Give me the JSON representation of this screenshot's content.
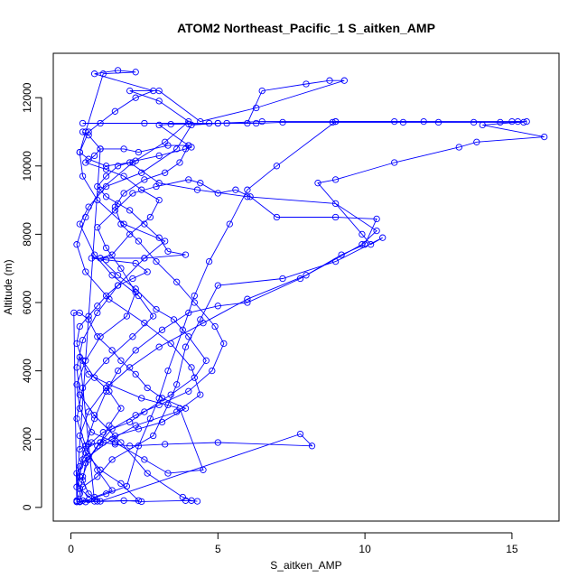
{
  "chart_data": {
    "type": "line",
    "title": "ATOM2 Northeast_Pacific_1 S_aitken_AMP",
    "xlabel": "S_aitken_AMP",
    "ylabel": "Altitude (m)",
    "xlim": [
      -0.6,
      16.6
    ],
    "ylim": [
      -400,
      13300
    ],
    "xticks": [
      0,
      5,
      10,
      15
    ],
    "yticks": [
      0,
      2000,
      4000,
      6000,
      8000,
      10000,
      12000
    ],
    "marker": "open-circle",
    "series_color": "#0000ff",
    "series": [
      {
        "points": [
          [
            0.2,
            160
          ],
          [
            0.4,
            200
          ],
          [
            0.9,
            180
          ],
          [
            1.8,
            200
          ],
          [
            2.4,
            170
          ],
          [
            3.9,
            200
          ],
          [
            4.3,
            180
          ],
          [
            4.1,
            200
          ],
          [
            3.8,
            300
          ],
          [
            2.6,
            1000
          ],
          [
            1.7,
            1900
          ],
          [
            0.8,
            2700
          ],
          [
            0.3,
            3300
          ],
          [
            0.2,
            4100
          ],
          [
            0.4,
            4900
          ],
          [
            0.9,
            5700
          ],
          [
            1.6,
            6500
          ],
          [
            2.5,
            7300
          ],
          [
            3.2,
            7800
          ],
          [
            1.8,
            8300
          ],
          [
            0.9,
            9000
          ],
          [
            0.4,
            9700
          ],
          [
            0.3,
            10400
          ],
          [
            0.6,
            11000
          ],
          [
            1.5,
            11600
          ],
          [
            2.2,
            12000
          ],
          [
            2.8,
            12200
          ],
          [
            0.8,
            12700
          ],
          [
            1.6,
            12800
          ],
          [
            2.2,
            12750
          ],
          [
            1.1,
            12700
          ],
          [
            0.5,
            11000
          ],
          [
            0.3,
            10400
          ],
          [
            0.6,
            10200
          ],
          [
            1.2,
            10000
          ],
          [
            2.0,
            10100
          ],
          [
            3.0,
            9500
          ],
          [
            4.3,
            9300
          ],
          [
            6.0,
            9100
          ],
          [
            9.0,
            8900
          ],
          [
            10.4,
            8100
          ],
          [
            9.9,
            7700
          ],
          [
            8.0,
            6800
          ],
          [
            6.0,
            6100
          ],
          [
            4.5,
            5400
          ],
          [
            3.0,
            4700
          ],
          [
            2.0,
            4100
          ],
          [
            1.2,
            3500
          ],
          [
            0.6,
            2800
          ],
          [
            0.3,
            2100
          ],
          [
            0.5,
            1600
          ],
          [
            1.0,
            1100
          ],
          [
            1.7,
            700
          ],
          [
            2.3,
            200
          ],
          [
            0.3,
            160
          ],
          [
            0.6,
            220
          ],
          [
            1.2,
            400
          ],
          [
            1.9,
            620
          ],
          [
            2.3,
            1800
          ],
          [
            2.7,
            2600
          ],
          [
            3.0,
            3200
          ],
          [
            3.3,
            4000
          ],
          [
            3.8,
            5200
          ],
          [
            4.2,
            6200
          ],
          [
            4.7,
            7200
          ],
          [
            5.4,
            8300
          ],
          [
            6.0,
            9300
          ],
          [
            7.0,
            10000
          ],
          [
            9.0,
            11300
          ],
          [
            12.0,
            11300
          ],
          [
            15.0,
            11300
          ],
          [
            15.5,
            11300
          ],
          [
            14.0,
            11200
          ],
          [
            16.1,
            10850
          ],
          [
            13.8,
            10700
          ],
          [
            13.2,
            10550
          ],
          [
            11.0,
            10100
          ],
          [
            9.0,
            9600
          ],
          [
            8.4,
            9500
          ],
          [
            9.9,
            8000
          ],
          [
            10.2,
            7700
          ],
          [
            10.6,
            7900
          ],
          [
            9.0,
            7200
          ],
          [
            7.2,
            6700
          ],
          [
            5.0,
            6500
          ],
          [
            4.4,
            5500
          ],
          [
            3.9,
            4700
          ],
          [
            3.6,
            3600
          ],
          [
            3.3,
            3000
          ],
          [
            2.8,
            2100
          ],
          [
            1.4,
            1400
          ],
          [
            0.9,
            900
          ],
          [
            0.4,
            600
          ],
          [
            0.3,
            180
          ]
        ]
      },
      {
        "points": [
          [
            0.5,
            160
          ],
          [
            0.8,
            300
          ],
          [
            1.4,
            500
          ],
          [
            0.9,
            1100
          ],
          [
            0.5,
            1800
          ],
          [
            0.2,
            2600
          ],
          [
            0.4,
            3500
          ],
          [
            1.2,
            4300
          ],
          [
            2.1,
            5000
          ],
          [
            2.8,
            5600
          ],
          [
            2.3,
            6200
          ],
          [
            1.4,
            6800
          ],
          [
            0.8,
            7400
          ],
          [
            0.3,
            8300
          ],
          [
            0.6,
            8800
          ],
          [
            1.2,
            9400
          ],
          [
            2.4,
            9800
          ],
          [
            3.6,
            10500
          ],
          [
            4.1,
            11200
          ],
          [
            5.0,
            11250
          ],
          [
            6.0,
            11250
          ],
          [
            6.5,
            12200
          ],
          [
            8.0,
            12400
          ],
          [
            8.8,
            12500
          ],
          [
            9.3,
            12500
          ],
          [
            6.3,
            11700
          ],
          [
            4.4,
            11300
          ],
          [
            3.0,
            12200
          ],
          [
            2.0,
            12200
          ],
          [
            3.0,
            11900
          ],
          [
            4.0,
            11300
          ],
          [
            3.2,
            10700
          ],
          [
            2.1,
            10100
          ],
          [
            1.0,
            9300
          ],
          [
            0.5,
            8500
          ],
          [
            0.2,
            7700
          ],
          [
            0.5,
            6900
          ],
          [
            1.3,
            6100
          ],
          [
            2.5,
            5400
          ],
          [
            3.4,
            4800
          ],
          [
            4.1,
            4100
          ],
          [
            4.4,
            3300
          ],
          [
            3.6,
            2800
          ],
          [
            2.2,
            2400
          ],
          [
            1.4,
            2000
          ],
          [
            0.6,
            1500
          ],
          [
            0.2,
            1000
          ],
          [
            0.3,
            550
          ],
          [
            0.8,
            180
          ],
          [
            0.3,
            4400
          ],
          [
            0.6,
            3900
          ],
          [
            1.3,
            3600
          ],
          [
            2.4,
            3200
          ],
          [
            3.7,
            2900
          ],
          [
            4.5,
            1100
          ],
          [
            3.3,
            1000
          ],
          [
            2.5,
            1400
          ],
          [
            1.5,
            1900
          ],
          [
            0.7,
            2200
          ],
          [
            0.3,
            2900
          ],
          [
            0.2,
            3600
          ],
          [
            0.5,
            4300
          ],
          [
            1.0,
            5000
          ],
          [
            1.9,
            5600
          ],
          [
            2.2,
            6300
          ],
          [
            1.7,
            7000
          ],
          [
            1.2,
            7600
          ],
          [
            0.9,
            8200
          ],
          [
            1.5,
            8700
          ],
          [
            2.1,
            9200
          ],
          [
            2.9,
            9400
          ],
          [
            4.0,
            9600
          ],
          [
            4.4,
            9500
          ],
          [
            5.0,
            9200
          ],
          [
            5.6,
            9300
          ],
          [
            6.1,
            9100
          ],
          [
            7.0,
            8500
          ],
          [
            9.0,
            8500
          ],
          [
            10.4,
            8450
          ],
          [
            10.0,
            7700
          ],
          [
            9.2,
            7400
          ],
          [
            7.8,
            6700
          ],
          [
            6.0,
            6000
          ],
          [
            5.0,
            5900
          ],
          [
            4.0,
            5700
          ],
          [
            3.1,
            5200
          ],
          [
            2.2,
            4600
          ],
          [
            1.6,
            4000
          ],
          [
            1.2,
            3400
          ],
          [
            0.8,
            2600
          ],
          [
            0.5,
            1800
          ],
          [
            0.3,
            1200
          ],
          [
            0.2,
            200
          ]
        ]
      },
      {
        "points": [
          [
            0.4,
            11000
          ],
          [
            0.6,
            10900
          ],
          [
            1.0,
            10500
          ],
          [
            0.8,
            10300
          ],
          [
            0.5,
            10100
          ],
          [
            1.2,
            9900
          ],
          [
            1.8,
            9700
          ],
          [
            2.4,
            9300
          ],
          [
            3.0,
            9000
          ],
          [
            2.7,
            8500
          ],
          [
            2.0,
            8000
          ],
          [
            1.4,
            7400
          ],
          [
            1.0,
            7300
          ],
          [
            1.6,
            6800
          ],
          [
            2.2,
            6400
          ],
          [
            2.9,
            5800
          ],
          [
            3.5,
            5500
          ],
          [
            4.0,
            5000
          ],
          [
            4.6,
            4300
          ],
          [
            4.2,
            3800
          ],
          [
            3.4,
            3300
          ],
          [
            2.5,
            2800
          ],
          [
            2.0,
            2500
          ],
          [
            1.1,
            2200
          ],
          [
            0.7,
            1900
          ],
          [
            0.4,
            1400
          ],
          [
            0.3,
            900
          ],
          [
            0.2,
            600
          ],
          [
            1.0,
            10500
          ],
          [
            1.8,
            10500
          ],
          [
            2.3,
            10400
          ],
          [
            3.3,
            10600
          ],
          [
            4.0,
            10600
          ],
          [
            3.7,
            10100
          ],
          [
            3.2,
            9800
          ],
          [
            2.5,
            9600
          ],
          [
            1.8,
            9200
          ],
          [
            1.5,
            8800
          ],
          [
            1.7,
            8300
          ],
          [
            2.3,
            7800
          ],
          [
            2.9,
            7200
          ],
          [
            3.6,
            6600
          ],
          [
            4.2,
            6000
          ],
          [
            4.9,
            5300
          ],
          [
            5.2,
            4800
          ],
          [
            4.8,
            4000
          ],
          [
            4.0,
            3400
          ],
          [
            3.0,
            3000
          ],
          [
            2.2,
            2700
          ],
          [
            1.4,
            2300
          ],
          [
            0.9,
            1800
          ],
          [
            0.5,
            1300
          ],
          [
            0.4,
            800
          ],
          [
            0.6,
            400
          ],
          [
            1.0,
            180
          ],
          [
            7.8,
            2150
          ],
          [
            8.2,
            1800
          ],
          [
            5.0,
            1900
          ],
          [
            3.2,
            1850
          ],
          [
            2.0,
            1800
          ],
          [
            1.5,
            1850
          ],
          [
            1.1,
            1900
          ],
          [
            0.6,
            1850
          ],
          [
            0.3,
            1700
          ]
        ]
      },
      {
        "points": [
          [
            0.4,
            11250
          ],
          [
            1.0,
            11250
          ],
          [
            2.5,
            11250
          ],
          [
            4.7,
            11250
          ],
          [
            5.3,
            11250
          ],
          [
            6.3,
            11250
          ],
          [
            7.2,
            11280
          ],
          [
            8.9,
            11280
          ],
          [
            11.3,
            11280
          ],
          [
            12.5,
            11280
          ],
          [
            13.7,
            11280
          ],
          [
            14.6,
            11280
          ],
          [
            15.2,
            11300
          ],
          [
            15.4,
            11280
          ],
          [
            11.0,
            11300
          ],
          [
            9.0,
            11300
          ],
          [
            6.5,
            11300
          ],
          [
            5.0,
            11250
          ],
          [
            4.0,
            11230
          ],
          [
            3.4,
            11220
          ],
          [
            3.0,
            11200
          ],
          [
            4.0,
            10600
          ],
          [
            4.1,
            10550
          ],
          [
            3.9,
            10500
          ],
          [
            3.0,
            10300
          ],
          [
            2.2,
            10150
          ],
          [
            1.6,
            10000
          ],
          [
            1.2,
            9700
          ],
          [
            0.9,
            9400
          ],
          [
            1.2,
            9100
          ],
          [
            1.6,
            8900
          ],
          [
            2.0,
            8700
          ],
          [
            2.5,
            8300
          ],
          [
            3.0,
            7900
          ],
          [
            3.3,
            7500
          ],
          [
            3.9,
            7400
          ],
          [
            2.5,
            7300
          ],
          [
            1.0,
            7300
          ],
          [
            0.7,
            7300
          ],
          [
            1.2,
            7250
          ],
          [
            2.2,
            7150
          ],
          [
            2.6,
            6900
          ],
          [
            2.1,
            6700
          ],
          [
            1.6,
            6500
          ],
          [
            1.2,
            6200
          ],
          [
            0.9,
            5900
          ],
          [
            0.6,
            5600
          ],
          [
            0.3,
            5300
          ],
          [
            0.2,
            4800
          ],
          [
            0.4,
            4300
          ],
          [
            0.8,
            3800
          ],
          [
            1.3,
            3400
          ],
          [
            1.7,
            2900
          ],
          [
            1.3,
            2400
          ],
          [
            1.0,
            1900
          ],
          [
            0.6,
            1400
          ],
          [
            0.4,
            900
          ],
          [
            0.3,
            400
          ],
          [
            0.2,
            170
          ],
          [
            0.1,
            5700
          ],
          [
            0.3,
            5700
          ],
          [
            0.6,
            5500
          ],
          [
            0.9,
            5000
          ],
          [
            1.4,
            4600
          ],
          [
            1.7,
            4300
          ],
          [
            2.2,
            3900
          ],
          [
            2.6,
            3500
          ],
          [
            3.1,
            3200
          ],
          [
            3.9,
            2900
          ],
          [
            3.1,
            2500
          ],
          [
            2.3,
            2300
          ],
          [
            1.5,
            2100
          ],
          [
            1.0,
            1900
          ]
        ]
      }
    ]
  }
}
